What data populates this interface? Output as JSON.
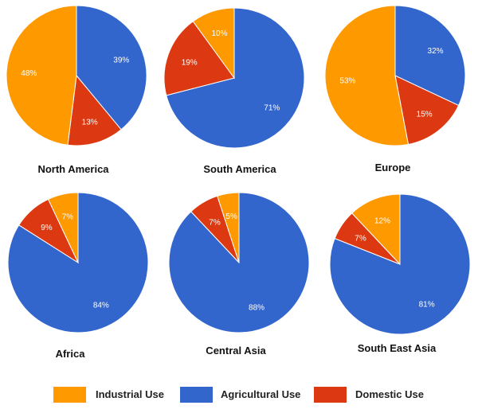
{
  "chart_data": [
    {
      "type": "pie",
      "title": "North America",
      "categories": [
        "Agricultural Use",
        "Domestic Use",
        "Industrial Use"
      ],
      "values": [
        39,
        13,
        48
      ]
    },
    {
      "type": "pie",
      "title": "South America",
      "categories": [
        "Agricultural Use",
        "Domestic Use",
        "Industrial Use"
      ],
      "values": [
        71,
        19,
        10
      ]
    },
    {
      "type": "pie",
      "title": "Europe",
      "categories": [
        "Agricultural Use",
        "Domestic Use",
        "Industrial Use"
      ],
      "values": [
        32,
        15,
        53
      ]
    },
    {
      "type": "pie",
      "title": "Africa",
      "categories": [
        "Agricultural Use",
        "Domestic Use",
        "Industrial Use"
      ],
      "values": [
        84,
        9,
        7
      ]
    },
    {
      "type": "pie",
      "title": "Central Asia",
      "categories": [
        "Agricultural Use",
        "Domestic Use",
        "Industrial Use"
      ],
      "values": [
        88,
        7,
        5
      ]
    },
    {
      "type": "pie",
      "title": "South East Asia",
      "categories": [
        "Agricultural Use",
        "Domestic Use",
        "Industrial Use"
      ],
      "values": [
        81,
        7,
        12
      ]
    }
  ],
  "legend": {
    "position": "bottom",
    "items": [
      {
        "label": "Industrial Use",
        "color": "#ff9900"
      },
      {
        "label": "Agricultural Use",
        "color": "#3366cc"
      },
      {
        "label": "Domestic Use",
        "color": "#dc3912"
      }
    ]
  },
  "colors": {
    "Agricultural Use": "#3366cc",
    "Domestic Use": "#dc3912",
    "Industrial Use": "#ff9900"
  }
}
